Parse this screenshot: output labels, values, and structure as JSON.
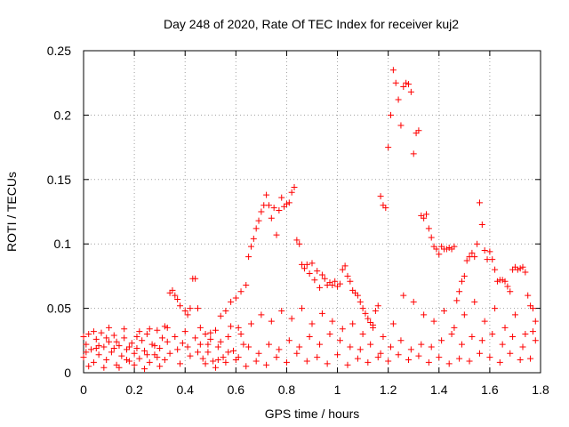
{
  "chart_data": {
    "type": "scatter",
    "title": "Day 248 of 2020, Rate Of TEC Index for receiver kuj2",
    "xlabel": "GPS time / hours",
    "ylabel": "ROTI / TECUs",
    "xlim": [
      0,
      1.8
    ],
    "ylim": [
      0,
      0.25
    ],
    "x_ticks": [
      "0",
      "0.2",
      "0.4",
      "0.6",
      "0.8",
      "1",
      "1.2",
      "1.4",
      "1.6",
      "1.8"
    ],
    "y_ticks": [
      "0",
      "0.05",
      "0.1",
      "0.15",
      "0.2",
      "0.25"
    ],
    "grid": true,
    "marker": "+",
    "color": "#ff0000",
    "series": [
      {
        "points": [
          [
            0.0,
            0.012
          ],
          [
            0.01,
            0.022
          ],
          [
            0.02,
            0.03
          ],
          [
            0.03,
            0.018
          ],
          [
            0.04,
            0.008
          ],
          [
            0.05,
            0.026
          ],
          [
            0.06,
            0.014
          ],
          [
            0.07,
            0.031
          ],
          [
            0.08,
            0.02
          ],
          [
            0.09,
            0.01
          ],
          [
            0.1,
            0.024
          ],
          [
            0.11,
            0.016
          ],
          [
            0.12,
            0.029
          ],
          [
            0.13,
            0.006
          ],
          [
            0.14,
            0.021
          ],
          [
            0.15,
            0.013
          ],
          [
            0.16,
            0.027
          ],
          [
            0.17,
            0.018
          ],
          [
            0.18,
            0.009
          ],
          [
            0.19,
            0.023
          ],
          [
            0.2,
            0.015
          ],
          [
            0.21,
            0.028
          ],
          [
            0.22,
            0.011
          ],
          [
            0.23,
            0.025
          ],
          [
            0.24,
            0.017
          ],
          [
            0.25,
            0.03
          ],
          [
            0.26,
            0.008
          ],
          [
            0.27,
            0.022
          ],
          [
            0.28,
            0.014
          ],
          [
            0.29,
            0.033
          ],
          [
            0.3,
            0.019
          ],
          [
            0.31,
            0.027
          ],
          [
            0.32,
            0.01
          ],
          [
            0.33,
            0.035
          ],
          [
            0.34,
            0.062
          ],
          [
            0.35,
            0.064
          ],
          [
            0.36,
            0.06
          ],
          [
            0.37,
            0.057
          ],
          [
            0.38,
            0.052
          ],
          [
            0.39,
            0.023
          ],
          [
            0.4,
            0.048
          ],
          [
            0.41,
            0.045
          ],
          [
            0.42,
            0.05
          ],
          [
            0.43,
            0.073
          ],
          [
            0.44,
            0.073
          ],
          [
            0.45,
            0.05
          ],
          [
            0.46,
            0.022
          ],
          [
            0.47,
            0.011
          ],
          [
            0.48,
            0.03
          ],
          [
            0.49,
            0.016
          ],
          [
            0.5,
            0.026
          ],
          [
            0.51,
            0.009
          ],
          [
            0.52,
            0.033
          ],
          [
            0.53,
            0.02
          ],
          [
            0.54,
            0.044
          ],
          [
            0.55,
            0.012
          ],
          [
            0.56,
            0.048
          ],
          [
            0.57,
            0.028
          ],
          [
            0.58,
            0.055
          ],
          [
            0.59,
            0.017
          ],
          [
            0.6,
            0.058
          ],
          [
            0.61,
            0.035
          ],
          [
            0.62,
            0.063
          ],
          [
            0.63,
            0.022
          ],
          [
            0.64,
            0.068
          ],
          [
            0.65,
            0.09
          ],
          [
            0.66,
            0.098
          ],
          [
            0.67,
            0.104
          ],
          [
            0.68,
            0.112
          ],
          [
            0.69,
            0.118
          ],
          [
            0.7,
            0.125
          ],
          [
            0.71,
            0.13
          ],
          [
            0.72,
            0.138
          ],
          [
            0.73,
            0.13
          ],
          [
            0.74,
            0.12
          ],
          [
            0.75,
            0.128
          ],
          [
            0.76,
            0.107
          ],
          [
            0.77,
            0.126
          ],
          [
            0.78,
            0.136
          ],
          [
            0.79,
            0.129
          ],
          [
            0.8,
            0.131
          ],
          [
            0.81,
            0.132
          ],
          [
            0.82,
            0.14
          ],
          [
            0.83,
            0.144
          ],
          [
            0.84,
            0.103
          ],
          [
            0.85,
            0.1
          ],
          [
            0.86,
            0.084
          ],
          [
            0.87,
            0.081
          ],
          [
            0.88,
            0.084
          ],
          [
            0.89,
            0.077
          ],
          [
            0.9,
            0.085
          ],
          [
            0.91,
            0.072
          ],
          [
            0.92,
            0.079
          ],
          [
            0.93,
            0.066
          ],
          [
            0.94,
            0.076
          ],
          [
            0.95,
            0.073
          ],
          [
            0.96,
            0.068
          ],
          [
            0.97,
            0.07
          ],
          [
            0.98,
            0.068
          ],
          [
            0.99,
            0.071
          ],
          [
            1.0,
            0.067
          ],
          [
            1.01,
            0.069
          ],
          [
            1.02,
            0.08
          ],
          [
            1.03,
            0.083
          ],
          [
            1.04,
            0.075
          ],
          [
            1.05,
            0.071
          ],
          [
            1.06,
            0.064
          ],
          [
            1.07,
            0.062
          ],
          [
            1.08,
            0.06
          ],
          [
            1.09,
            0.055
          ],
          [
            1.1,
            0.05
          ],
          [
            1.11,
            0.046
          ],
          [
            1.12,
            0.042
          ],
          [
            1.13,
            0.039
          ],
          [
            1.14,
            0.037
          ],
          [
            1.15,
            0.048
          ],
          [
            1.16,
            0.052
          ],
          [
            1.17,
            0.137
          ],
          [
            1.18,
            0.13
          ],
          [
            1.19,
            0.128
          ],
          [
            1.2,
            0.175
          ],
          [
            1.21,
            0.2
          ],
          [
            1.22,
            0.235
          ],
          [
            1.23,
            0.225
          ],
          [
            1.24,
            0.212
          ],
          [
            1.25,
            0.192
          ],
          [
            1.26,
            0.222
          ],
          [
            1.27,
            0.225
          ],
          [
            1.28,
            0.224
          ],
          [
            1.29,
            0.218
          ],
          [
            1.3,
            0.17
          ],
          [
            1.31,
            0.186
          ],
          [
            1.32,
            0.188
          ],
          [
            1.33,
            0.122
          ],
          [
            1.34,
            0.12
          ],
          [
            1.35,
            0.123
          ],
          [
            1.36,
            0.112
          ],
          [
            1.37,
            0.105
          ],
          [
            1.38,
            0.098
          ],
          [
            1.39,
            0.096
          ],
          [
            1.4,
            0.092
          ],
          [
            1.41,
            0.098
          ],
          [
            1.42,
            0.096
          ],
          [
            1.43,
            0.096
          ],
          [
            1.44,
            0.097
          ],
          [
            1.45,
            0.096
          ],
          [
            1.46,
            0.098
          ],
          [
            1.47,
            0.056
          ],
          [
            1.48,
            0.063
          ],
          [
            1.49,
            0.071
          ],
          [
            1.5,
            0.075
          ],
          [
            1.51,
            0.087
          ],
          [
            1.52,
            0.09
          ],
          [
            1.53,
            0.093
          ],
          [
            1.54,
            0.09
          ],
          [
            1.55,
            0.1
          ],
          [
            1.56,
            0.132
          ],
          [
            1.57,
            0.115
          ],
          [
            1.58,
            0.095
          ],
          [
            1.59,
            0.088
          ],
          [
            1.6,
            0.094
          ],
          [
            1.61,
            0.088
          ],
          [
            1.62,
            0.08
          ],
          [
            1.63,
            0.071
          ],
          [
            1.64,
            0.072
          ],
          [
            1.65,
            0.072
          ],
          [
            1.66,
            0.071
          ],
          [
            1.67,
            0.067
          ],
          [
            1.68,
            0.063
          ],
          [
            1.69,
            0.08
          ],
          [
            1.7,
            0.082
          ],
          [
            1.71,
            0.08
          ],
          [
            1.72,
            0.081
          ],
          [
            1.73,
            0.082
          ],
          [
            1.74,
            0.078
          ],
          [
            1.75,
            0.06
          ],
          [
            1.76,
            0.052
          ],
          [
            1.77,
            0.05
          ],
          [
            1.78,
            0.04
          ],
          [
            0.0,
            0.028
          ],
          [
            0.02,
            0.005
          ],
          [
            0.04,
            0.032
          ],
          [
            0.06,
            0.021
          ],
          [
            0.08,
            0.004
          ],
          [
            0.1,
            0.035
          ],
          [
            0.12,
            0.019
          ],
          [
            0.14,
            0.004
          ],
          [
            0.16,
            0.034
          ],
          [
            0.18,
            0.02
          ],
          [
            0.2,
            0.006
          ],
          [
            0.22,
            0.032
          ],
          [
            0.24,
            0.003
          ],
          [
            0.26,
            0.034
          ],
          [
            0.28,
            0.021
          ],
          [
            0.3,
            0.005
          ],
          [
            0.32,
            0.036
          ],
          [
            0.34,
            0.015
          ],
          [
            0.36,
            0.028
          ],
          [
            0.38,
            0.007
          ],
          [
            0.4,
            0.032
          ],
          [
            0.42,
            0.013
          ],
          [
            0.44,
            0.027
          ],
          [
            0.46,
            0.035
          ],
          [
            0.48,
            0.007
          ],
          [
            0.5,
            0.031
          ],
          [
            0.52,
            0.004
          ],
          [
            0.54,
            0.024
          ],
          [
            0.56,
            0.008
          ],
          [
            0.58,
            0.036
          ],
          [
            0.6,
            0.01
          ],
          [
            0.62,
            0.03
          ],
          [
            0.64,
            0.005
          ],
          [
            0.66,
            0.038
          ],
          [
            0.68,
            0.009
          ],
          [
            0.7,
            0.045
          ],
          [
            0.72,
            0.006
          ],
          [
            0.74,
            0.04
          ],
          [
            0.76,
            0.012
          ],
          [
            0.78,
            0.048
          ],
          [
            0.8,
            0.008
          ],
          [
            0.82,
            0.042
          ],
          [
            0.84,
            0.015
          ],
          [
            0.86,
            0.05
          ],
          [
            0.88,
            0.009
          ],
          [
            0.9,
            0.038
          ],
          [
            0.92,
            0.012
          ],
          [
            0.94,
            0.046
          ],
          [
            0.96,
            0.007
          ],
          [
            0.98,
            0.04
          ],
          [
            1.0,
            0.014
          ],
          [
            1.02,
            0.034
          ],
          [
            1.04,
            0.006
          ],
          [
            1.06,
            0.038
          ],
          [
            1.08,
            0.011
          ],
          [
            1.1,
            0.03
          ],
          [
            1.12,
            0.008
          ],
          [
            1.14,
            0.035
          ],
          [
            1.16,
            0.012
          ],
          [
            1.18,
            0.028
          ],
          [
            1.2,
            0.009
          ],
          [
            1.22,
            0.038
          ],
          [
            1.24,
            0.014
          ],
          [
            1.26,
            0.06
          ],
          [
            1.28,
            0.01
          ],
          [
            1.3,
            0.055
          ],
          [
            1.32,
            0.013
          ],
          [
            1.34,
            0.045
          ],
          [
            1.36,
            0.008
          ],
          [
            1.38,
            0.04
          ],
          [
            1.4,
            0.012
          ],
          [
            1.42,
            0.048
          ],
          [
            1.44,
            0.007
          ],
          [
            1.46,
            0.035
          ],
          [
            1.48,
            0.011
          ],
          [
            1.5,
            0.045
          ],
          [
            1.52,
            0.009
          ],
          [
            1.54,
            0.055
          ],
          [
            1.56,
            0.015
          ],
          [
            1.58,
            0.04
          ],
          [
            1.6,
            0.012
          ],
          [
            1.62,
            0.05
          ],
          [
            1.64,
            0.008
          ],
          [
            1.66,
            0.035
          ],
          [
            1.68,
            0.015
          ],
          [
            1.7,
            0.045
          ],
          [
            1.72,
            0.01
          ],
          [
            1.74,
            0.03
          ],
          [
            1.76,
            0.011
          ],
          [
            1.78,
            0.025
          ],
          [
            0.01,
            0.016
          ],
          [
            0.05,
            0.019
          ],
          [
            0.09,
            0.027
          ],
          [
            0.13,
            0.024
          ],
          [
            0.17,
            0.01
          ],
          [
            0.21,
            0.019
          ],
          [
            0.25,
            0.014
          ],
          [
            0.29,
            0.012
          ],
          [
            0.33,
            0.024
          ],
          [
            0.37,
            0.018
          ],
          [
            0.41,
            0.02
          ],
          [
            0.45,
            0.016
          ],
          [
            0.49,
            0.022
          ],
          [
            0.53,
            0.01
          ],
          [
            0.57,
            0.016
          ],
          [
            0.61,
            0.012
          ],
          [
            0.65,
            0.02
          ],
          [
            0.69,
            0.015
          ],
          [
            0.73,
            0.022
          ],
          [
            0.77,
            0.018
          ],
          [
            0.81,
            0.025
          ],
          [
            0.85,
            0.02
          ],
          [
            0.89,
            0.028
          ],
          [
            0.93,
            0.022
          ],
          [
            0.97,
            0.03
          ],
          [
            1.01,
            0.025
          ],
          [
            1.05,
            0.02
          ],
          [
            1.09,
            0.018
          ],
          [
            1.13,
            0.022
          ],
          [
            1.17,
            0.015
          ],
          [
            1.21,
            0.02
          ],
          [
            1.25,
            0.025
          ],
          [
            1.29,
            0.018
          ],
          [
            1.33,
            0.022
          ],
          [
            1.37,
            0.02
          ],
          [
            1.41,
            0.025
          ],
          [
            1.45,
            0.03
          ],
          [
            1.49,
            0.022
          ],
          [
            1.53,
            0.028
          ],
          [
            1.57,
            0.025
          ],
          [
            1.61,
            0.03
          ],
          [
            1.65,
            0.022
          ],
          [
            1.69,
            0.028
          ],
          [
            1.73,
            0.02
          ],
          [
            1.77,
            0.032
          ]
        ]
      }
    ]
  }
}
